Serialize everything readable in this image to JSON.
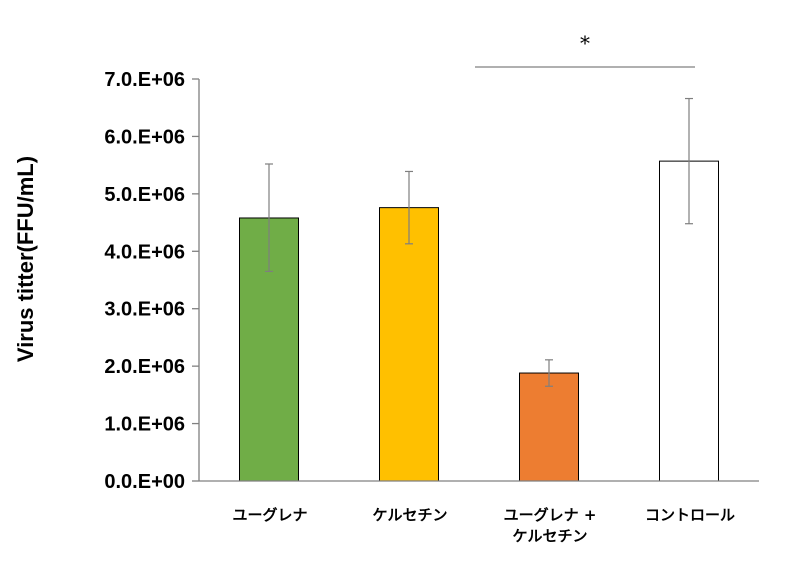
{
  "chart_data": {
    "type": "bar",
    "ylabel": "Virus titter(FFU/mL)",
    "ylim": [
      0,
      7000000
    ],
    "yticks": [
      0,
      1000000,
      2000000,
      3000000,
      4000000,
      5000000,
      6000000,
      7000000
    ],
    "ytick_labels": [
      "0.0.E+00",
      "1.0.E+06",
      "2.0.E+06",
      "3.0.E+06",
      "4.0.E+06",
      "5.0.E+06",
      "6.0.E+06",
      "7.0.E+06"
    ],
    "categories": [
      {
        "lines": [
          "ユーグレナ"
        ]
      },
      {
        "lines": [
          "ケルセチン"
        ]
      },
      {
        "lines": [
          "ユーグレナ +",
          "ケルセチン"
        ]
      },
      {
        "lines": [
          "コントロール"
        ]
      }
    ],
    "values": [
      4580000,
      4760000,
      1880000,
      5570000
    ],
    "error_low": [
      3650000,
      4130000,
      1650000,
      4480000
    ],
    "error_high": [
      5520000,
      5390000,
      2110000,
      6660000
    ],
    "colors": [
      "#70AD47",
      "#FFC000",
      "#ED7D31",
      "#FFFFFF"
    ],
    "bar_stroke": "#000000",
    "error_color": "#7F7F7F",
    "significance": {
      "from": 2,
      "to": 3,
      "label": "*"
    },
    "grid": false,
    "legend": "none"
  }
}
